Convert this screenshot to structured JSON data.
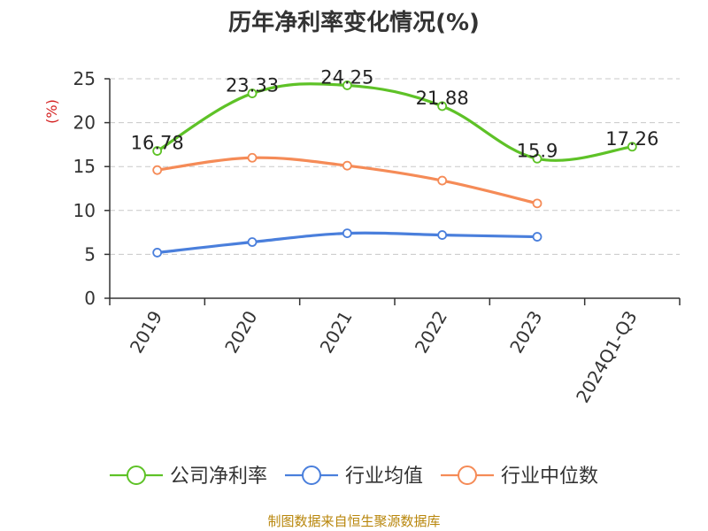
{
  "chart_data": {
    "type": "line",
    "title": "历年净利率变化情况(%)",
    "ylabel": "(%)",
    "xlabel": "",
    "categories": [
      "2019",
      "2020",
      "2021",
      "2022",
      "2023",
      "2024Q1-Q3"
    ],
    "ylim": [
      0,
      25
    ],
    "yticks": [
      0,
      5,
      10,
      15,
      20,
      25
    ],
    "grid": true,
    "legend_position": "bottom",
    "series": [
      {
        "name": "公司净利率",
        "color": "#5ec227",
        "values": [
          16.78,
          23.33,
          24.25,
          21.88,
          15.9,
          17.26
        ],
        "labels": [
          "16.78",
          "23.33",
          "24.25",
          "21.88",
          "15.9",
          "17.26"
        ]
      },
      {
        "name": "行业均值",
        "color": "#4a7fdc",
        "values": [
          5.2,
          6.4,
          7.4,
          7.2,
          7.0,
          null
        ],
        "labels": null
      },
      {
        "name": "行业中位数",
        "color": "#f58b57",
        "values": [
          14.6,
          16.0,
          15.1,
          13.4,
          10.8,
          null
        ],
        "labels": null
      }
    ],
    "source": "制图数据来自恒生聚源数据库"
  }
}
